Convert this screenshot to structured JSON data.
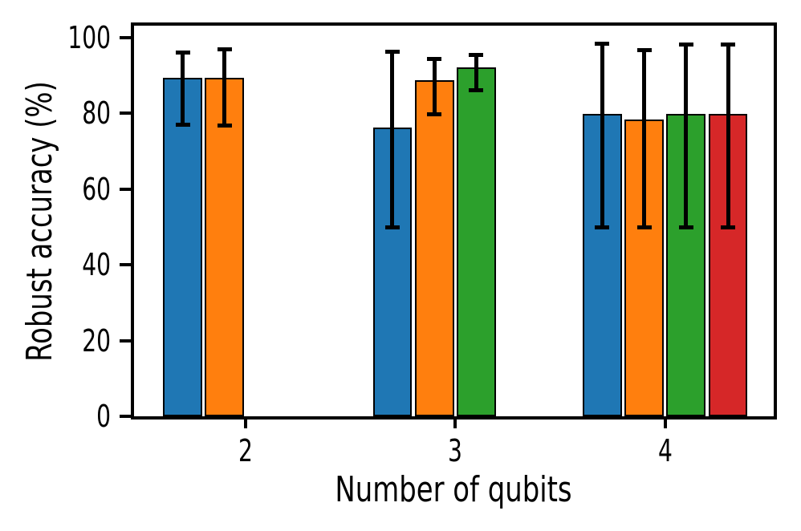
{
  "chart_data": {
    "type": "bar",
    "title": "",
    "xlabel": "Number of qubits",
    "ylabel": "Robust accuracy (%)",
    "categories": [
      "2",
      "3",
      "4"
    ],
    "x_values": [
      2,
      3,
      4
    ],
    "yticks": [
      "0",
      "20",
      "40",
      "60",
      "80",
      "100"
    ],
    "ylim": [
      0,
      103.2
    ],
    "xlim": [
      1.468,
      4.518
    ],
    "grid": false,
    "legend": "none",
    "bar_width_units": 0.187,
    "bar_step_units": 0.2,
    "bar_edge_color": "#000000",
    "error_bar_color": "#000000",
    "series": [
      {
        "name": "series-blue",
        "color": "#1f77b4",
        "values": [
          89.4,
          76.2,
          79.8
        ],
        "err_low": [
          77.1,
          50.0,
          50.0
        ],
        "err_high": [
          96.2,
          96.4,
          98.5
        ]
      },
      {
        "name": "series-orange",
        "color": "#ff7f0e",
        "values": [
          89.5,
          88.7,
          78.4
        ],
        "err_low": [
          76.8,
          79.8,
          49.9
        ],
        "err_high": [
          96.9,
          94.4,
          96.7
        ]
      },
      {
        "name": "series-green",
        "color": "#2ca02c",
        "values": [
          null,
          92.1,
          79.8
        ],
        "err_low": [
          null,
          86.1,
          50.0
        ],
        "err_high": [
          null,
          95.4,
          98.3
        ]
      },
      {
        "name": "series-red",
        "color": "#d62728",
        "values": [
          null,
          null,
          79.9
        ],
        "err_low": [
          null,
          null,
          50.0
        ],
        "err_high": [
          null,
          null,
          98.3
        ]
      }
    ]
  }
}
